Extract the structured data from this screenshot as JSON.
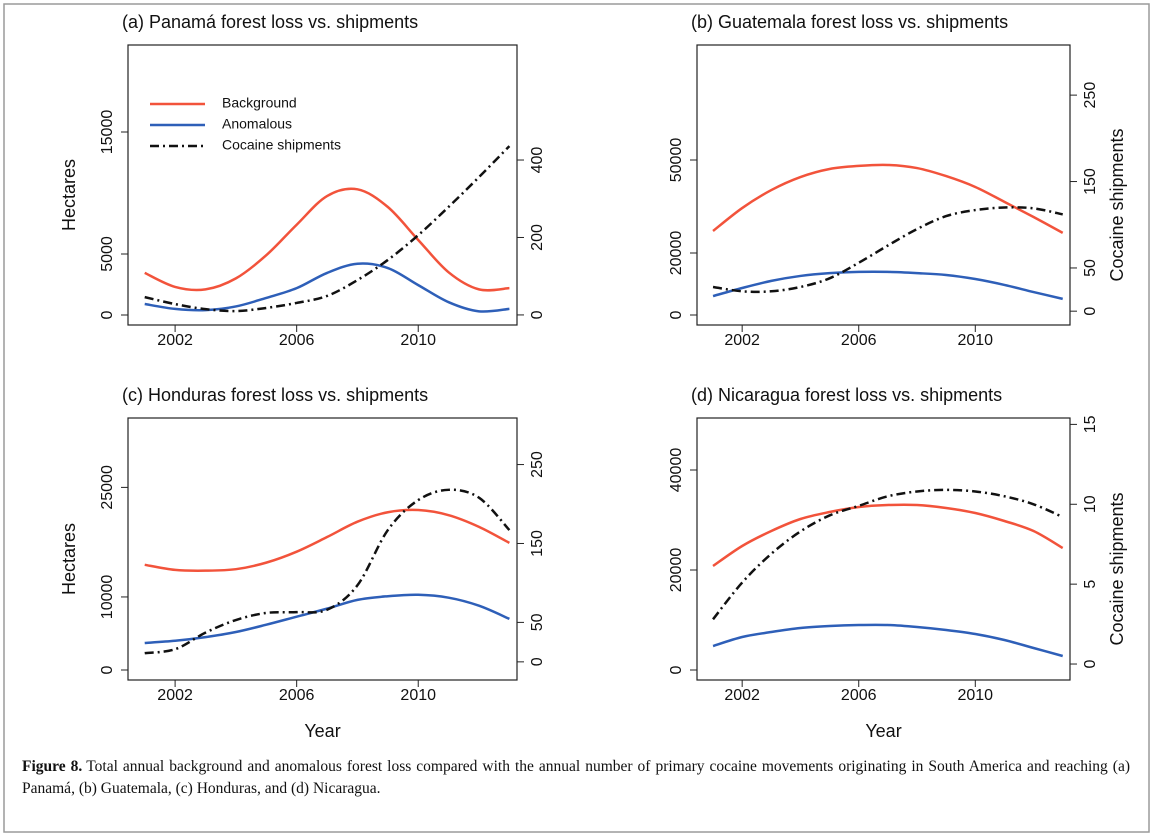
{
  "chart_data": [
    {
      "type": "line",
      "title": "(a) Panamá forest loss vs. shipments",
      "ylabel": "Hectares",
      "legend": "top-left",
      "x": [
        2001,
        2002,
        2003,
        2004,
        2005,
        2006,
        2007,
        2008,
        2009,
        2010,
        2011,
        2012,
        2013
      ],
      "xlim": [
        2000.45,
        2013.25
      ],
      "xticks": [
        2002,
        2006,
        2010
      ],
      "ylim": [
        -820,
        22130
      ],
      "yticks": [
        0,
        5000,
        15000
      ],
      "y2lim": [
        -26,
        697
      ],
      "y2ticks": [
        0,
        200,
        400
      ],
      "series": [
        {
          "name": "Background",
          "color": "#f2533b",
          "values": [
            3450,
            2300,
            2100,
            3000,
            4900,
            7400,
            9750,
            10300,
            8850,
            6150,
            3500,
            2100,
            2200
          ]
        },
        {
          "name": "Anomalous",
          "color": "#2e5fb8",
          "values": [
            900,
            500,
            400,
            700,
            1400,
            2200,
            3450,
            4200,
            3850,
            2450,
            1050,
            300,
            500
          ]
        },
        {
          "name": "Cocaine shipments",
          "color": "#111111",
          "axis": "y2",
          "values": [
            46,
            28,
            15,
            10,
            18,
            31,
            49,
            90,
            142,
            206,
            279,
            356,
            436
          ]
        }
      ]
    },
    {
      "type": "line",
      "title": "(b) Guatemala forest loss vs. shipments",
      "y2label": "Cocaine shipments",
      "x": [
        2001,
        2002,
        2003,
        2004,
        2005,
        2006,
        2007,
        2008,
        2009,
        2010,
        2011,
        2012,
        2013
      ],
      "xlim": [
        2000.45,
        2013.25
      ],
      "xticks": [
        2002,
        2006,
        2010
      ],
      "ylim": [
        -3230,
        87100
      ],
      "yticks": [
        0,
        20000,
        50000
      ],
      "y2lim": [
        -16,
        308
      ],
      "y2ticks": [
        0,
        50,
        150,
        250
      ],
      "series": [
        {
          "color": "#f2533b",
          "values": [
            27100,
            34500,
            40300,
            44500,
            47100,
            48100,
            48400,
            47400,
            44800,
            41300,
            36500,
            31600,
            26500
          ]
        },
        {
          "color": "#2e5fb8",
          "values": [
            6100,
            8700,
            11000,
            12600,
            13500,
            13900,
            13900,
            13500,
            12900,
            11600,
            9700,
            7400,
            5200
          ]
        },
        {
          "color": "#111111",
          "axis": "y2",
          "values": [
            28,
            23,
            23,
            28,
            38,
            56,
            76,
            95,
            110,
            117,
            120,
            119,
            112
          ]
        }
      ]
    },
    {
      "type": "line",
      "title": "(c) Honduras forest loss vs. shipments",
      "ylabel": "Hectares",
      "xlabel": "Year",
      "x": [
        2001,
        2002,
        2003,
        2004,
        2005,
        2006,
        2007,
        2008,
        2009,
        2010,
        2011,
        2012,
        2013
      ],
      "xlim": [
        2000.45,
        2013.25
      ],
      "xticks": [
        2002,
        2006,
        2010
      ],
      "ylim": [
        -1370,
        34500
      ],
      "yticks": [
        0,
        10000,
        25000
      ],
      "y2lim": [
        -23,
        309
      ],
      "y2ticks": [
        0,
        50,
        150,
        250
      ],
      "series": [
        {
          "color": "#f2533b",
          "values": [
            14400,
            13700,
            13600,
            13800,
            14700,
            16200,
            18200,
            20300,
            21600,
            21900,
            21200,
            19600,
            17400
          ]
        },
        {
          "color": "#2e5fb8",
          "values": [
            3700,
            4000,
            4500,
            5200,
            6200,
            7300,
            8400,
            9600,
            10100,
            10300,
            9900,
            8800,
            7000
          ]
        },
        {
          "color": "#111111",
          "axis": "y2",
          "values": [
            11,
            16,
            37,
            53,
            62,
            63,
            66,
            97,
            167,
            205,
            218,
            208,
            167
          ]
        }
      ]
    },
    {
      "type": "line",
      "title": "(d) Nicaragua forest loss vs. shipments",
      "xlabel": "Year",
      "y2label": "Cocaine shipments",
      "x": [
        2001,
        2002,
        2003,
        2004,
        2005,
        2006,
        2007,
        2008,
        2009,
        2010,
        2011,
        2012,
        2013
      ],
      "xlim": [
        2000.45,
        2013.25
      ],
      "xticks": [
        2002,
        2006,
        2010
      ],
      "ylim": [
        -2000,
        50400
      ],
      "yticks": [
        0,
        20000,
        40000
      ],
      "y2lim": [
        -1,
        15.4
      ],
      "y2ticks": [
        0,
        5,
        10,
        15
      ],
      "series": [
        {
          "color": "#f2533b",
          "values": [
            20800,
            24800,
            27800,
            30200,
            31600,
            32600,
            33000,
            33000,
            32400,
            31400,
            29800,
            27800,
            24400
          ]
        },
        {
          "color": "#2e5fb8",
          "values": [
            4800,
            6600,
            7600,
            8400,
            8800,
            9000,
            9000,
            8600,
            8000,
            7200,
            6000,
            4400,
            2800
          ]
        },
        {
          "color": "#111111",
          "axis": "y2",
          "values": [
            2.8,
            5.1,
            6.9,
            8.3,
            9.3,
            9.9,
            10.5,
            10.8,
            10.9,
            10.8,
            10.5,
            10.0,
            9.2
          ]
        }
      ]
    }
  ],
  "caption": {
    "label": "Figure 8.",
    "text": "Total annual background and anomalous forest loss compared with the annual number of primary cocaine movements originating in South America and reaching (a) Panamá, (b) Guatemala, (c) Honduras, and (d) Nicaragua."
  }
}
